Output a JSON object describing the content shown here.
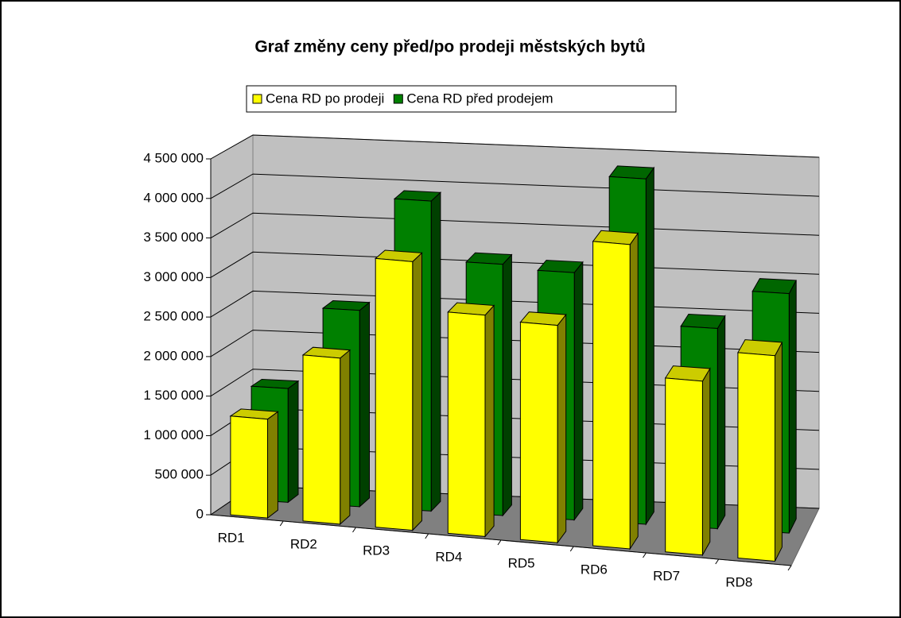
{
  "chart_data": {
    "type": "bar3d",
    "title": "Graf změny ceny před/po prodeji městských bytů",
    "categories": [
      "RD1",
      "RD2",
      "RD3",
      "RD4",
      "RD5",
      "RD6",
      "RD7",
      "RD8"
    ],
    "series": [
      {
        "name": "Cena RD po prodeji",
        "color": "#ffff00",
        "values": [
          1250000,
          2100000,
          3400000,
          2800000,
          2750000,
          3850000,
          2200000,
          2600000
        ]
      },
      {
        "name": "Cena RD před prodejem",
        "color": "#008000",
        "values": [
          1450000,
          2500000,
          3950000,
          3200000,
          3150000,
          4400000,
          2550000,
          3050000
        ]
      }
    ],
    "ylim": [
      0,
      4500000
    ],
    "yticks": [
      0,
      {
        "value": 500000,
        "label": "500 000"
      },
      {
        "value": 1000000,
        "label": "1 000 000"
      },
      {
        "value": 1500000,
        "label": "1 500 000"
      },
      {
        "value": 2000000,
        "label": "2 000 000"
      },
      {
        "value": 2500000,
        "label": "2 500 000"
      },
      {
        "value": 3000000,
        "label": "3 000 000"
      },
      {
        "value": 3500000,
        "label": "3 500 000"
      },
      {
        "value": 4000000,
        "label": "4 000 000"
      },
      {
        "value": 4500000,
        "label": "4 500 000"
      }
    ],
    "grid": true
  }
}
